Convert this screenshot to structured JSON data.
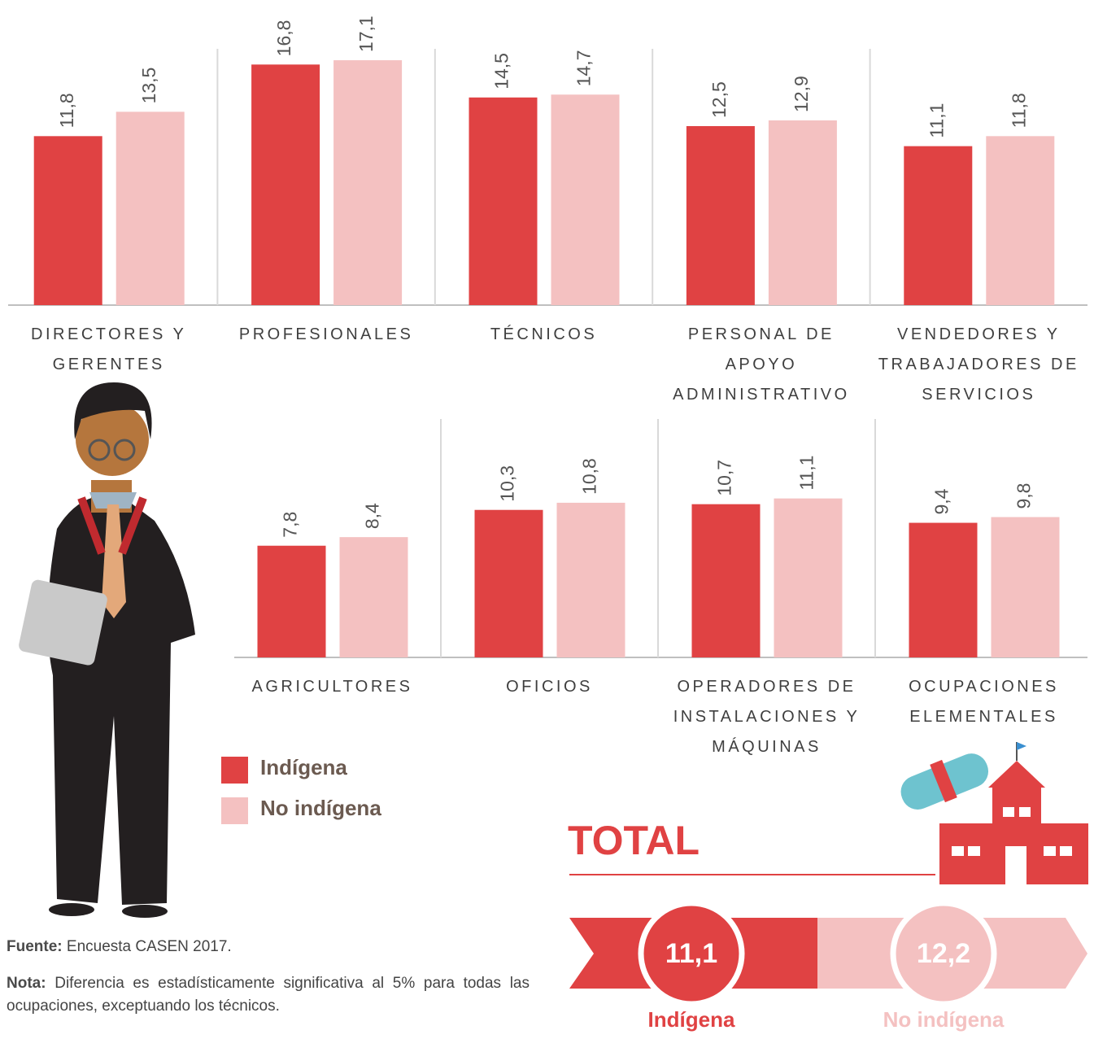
{
  "chart_data": [
    {
      "type": "bar",
      "categories": [
        "DIRECTORES Y GERENTES",
        "PROFESIONALES",
        "TÉCNICOS",
        "PERSONAL DE APOYO ADMINISTRATIVO",
        "VENDEDORES Y TRABAJADORES DE SERVICIOS"
      ],
      "series": [
        {
          "name": "Indígena",
          "color": "#e04243",
          "values": [
            11.8,
            16.8,
            14.5,
            12.5,
            11.1
          ],
          "value_labels": [
            "11,8",
            "16,8",
            "14,5",
            "12,5",
            "11,1"
          ]
        },
        {
          "name": "No indígena",
          "color": "#f4c1c1",
          "values": [
            13.5,
            17.1,
            14.7,
            12.9,
            11.8
          ],
          "value_labels": [
            "13,5",
            "17,1",
            "14,7",
            "12,9",
            "11,8"
          ]
        }
      ]
    },
    {
      "type": "bar",
      "categories": [
        "AGRICULTORES",
        "OFICIOS",
        "OPERADORES DE INSTALACIONES Y MÁQUINAS",
        "OCUPACIONES ELEMENTALES"
      ],
      "series": [
        {
          "name": "Indígena",
          "color": "#e04243",
          "values": [
            7.8,
            10.3,
            10.7,
            9.4
          ],
          "value_labels": [
            "7,8",
            "10,3",
            "10,7",
            "9,4"
          ]
        },
        {
          "name": "No indígena",
          "color": "#f4c1c1",
          "values": [
            8.4,
            10.8,
            11.1,
            9.8
          ],
          "value_labels": [
            "8,4",
            "10,8",
            "11,1",
            "9,8"
          ]
        }
      ]
    }
  ],
  "total": {
    "title": "TOTAL",
    "values": [
      11.1,
      12.2
    ],
    "value_labels": [
      "11,1",
      "12,2"
    ],
    "labels": [
      "Indígena",
      "No indígena"
    ]
  },
  "notes": {
    "source_label": "Fuente:",
    "source": "Encuesta CASEN 2017.",
    "note_label": "Nota:",
    "note": "Diferencia es estadísticamente significativa al 5% para todas las ocupaciones, exceptuando los técnicos."
  }
}
